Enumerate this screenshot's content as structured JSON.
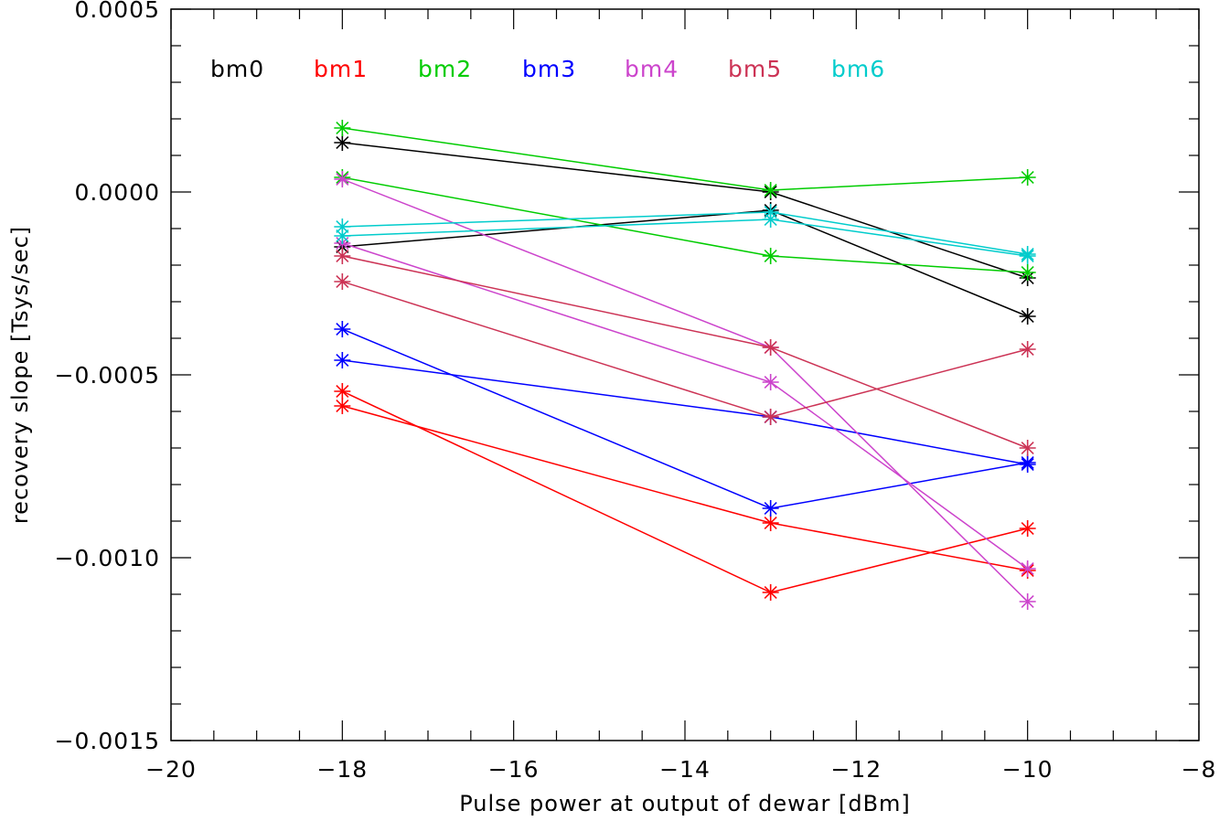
{
  "chart_data": {
    "type": "line",
    "title": "",
    "xlabel": "Pulse power at output of dewar [dBm]",
    "ylabel": "recovery slope [Tsys/sec]",
    "xlim": [
      -20,
      -8
    ],
    "ylim": [
      -0.0015,
      0.0005
    ],
    "x_ticks": [
      "−20",
      "−18",
      "−16",
      "−14",
      "−12",
      "−10",
      "−8"
    ],
    "y_ticks": [
      "−0.0015",
      "−0.0010",
      "−0.0005",
      "0.0000",
      "0.0005"
    ],
    "grid": false,
    "legend_placement": "top-left, horizontal, inside plot",
    "marker": "asterisk",
    "x": [
      -18,
      -13,
      -10
    ],
    "series": [
      {
        "name": "bm0",
        "color": "#000000",
        "values": [
          0.000135,
          0.0,
          -0.000235
        ]
      },
      {
        "name": "bm0",
        "color": "#000000",
        "values": [
          -0.00015,
          -5e-05,
          -0.00034
        ]
      },
      {
        "name": "bm1",
        "color": "#ff0000",
        "values": [
          -0.000545,
          -0.001095,
          -0.00092
        ]
      },
      {
        "name": "bm1",
        "color": "#ff0000",
        "values": [
          -0.000585,
          -0.000905,
          -0.001035
        ]
      },
      {
        "name": "bm2",
        "color": "#00cc00",
        "values": [
          0.000175,
          5e-06,
          4e-05
        ]
      },
      {
        "name": "bm2",
        "color": "#00cc00",
        "values": [
          4e-05,
          -0.000175,
          -0.00022
        ]
      },
      {
        "name": "bm3",
        "color": "#0000ff",
        "values": [
          -0.000375,
          -0.000865,
          -0.00074
        ]
      },
      {
        "name": "bm3",
        "color": "#0000ff",
        "values": [
          -0.00046,
          -0.000615,
          -0.000745
        ]
      },
      {
        "name": "bm4",
        "color": "#cc44cc",
        "values": [
          3.5e-05,
          -0.000425,
          -0.00112
        ]
      },
      {
        "name": "bm4",
        "color": "#cc44cc",
        "values": [
          -0.00014,
          -0.00052,
          -0.00103
        ]
      },
      {
        "name": "bm5",
        "color": "#cc3355",
        "values": [
          -0.000175,
          -0.000425,
          -0.0007
        ]
      },
      {
        "name": "bm5",
        "color": "#cc3355",
        "values": [
          -0.000245,
          -0.000615,
          -0.00043
        ]
      },
      {
        "name": "bm6",
        "color": "#00cccc",
        "values": [
          -9.5e-05,
          -5.5e-05,
          -0.00017
        ]
      },
      {
        "name": "bm6",
        "color": "#00cccc",
        "values": [
          -0.00012,
          -7.5e-05,
          -0.000175
        ]
      }
    ],
    "legend": [
      {
        "label": "bm0",
        "color": "#000000"
      },
      {
        "label": "bm1",
        "color": "#ff0000"
      },
      {
        "label": "bm2",
        "color": "#00cc00"
      },
      {
        "label": "bm3",
        "color": "#0000ff"
      },
      {
        "label": "bm4",
        "color": "#cc44cc"
      },
      {
        "label": "bm5",
        "color": "#cc3355"
      },
      {
        "label": "bm6",
        "color": "#00cccc"
      }
    ]
  }
}
